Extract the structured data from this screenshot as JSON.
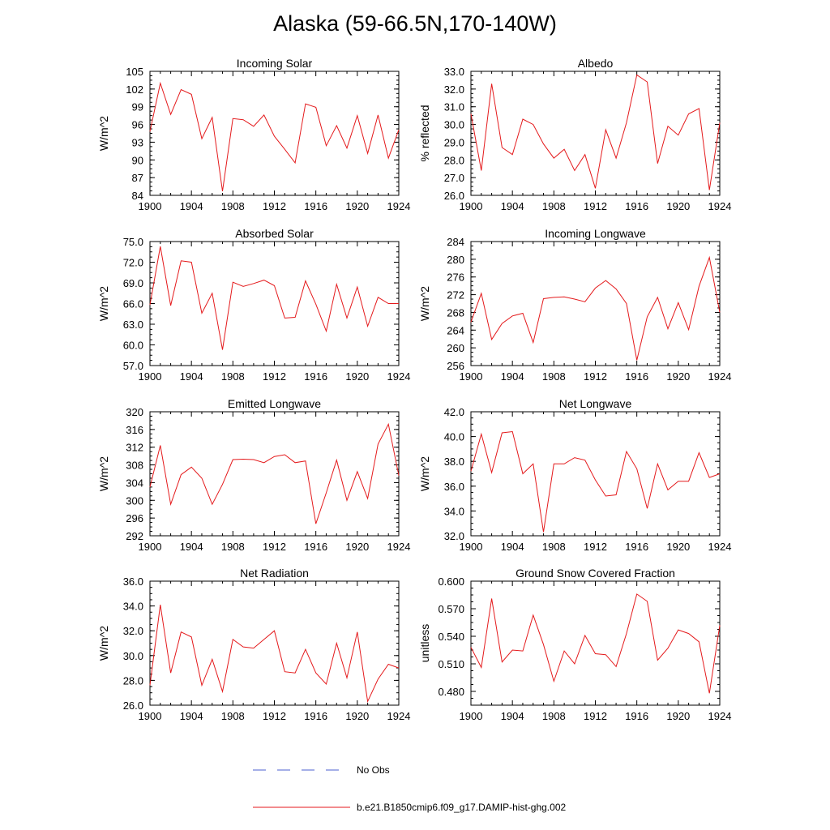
{
  "figure": {
    "title": "Alaska (59-66.5N,170-140W)"
  },
  "legend": {
    "obs_label": "No Obs",
    "model_label": "b.e21.B1850cmip6.f09_g17.DAMIP-hist-ghg.002",
    "obs_color": "#4b5fd0",
    "model_color": "#e41a1c"
  },
  "chart_data": [
    {
      "type": "line",
      "title": "Incoming Solar",
      "ylabel": "W/m^2",
      "xlim": [
        1900,
        1924
      ],
      "ylim": [
        84,
        105
      ],
      "xticks": [
        1900,
        1904,
        1908,
        1912,
        1916,
        1920,
        1924
      ],
      "yticks": [
        "84",
        "87",
        "90",
        "93",
        "96",
        "99",
        "102",
        "105"
      ],
      "x": [
        1900,
        1901,
        1902,
        1903,
        1904,
        1905,
        1906,
        1907,
        1908,
        1909,
        1910,
        1911,
        1912,
        1913,
        1914,
        1915,
        1916,
        1917,
        1918,
        1919,
        1920,
        1921,
        1922,
        1923,
        1924
      ],
      "y": [
        94.8,
        103.0,
        97.7,
        101.9,
        101.1,
        93.6,
        97.2,
        84.7,
        97.0,
        96.8,
        95.7,
        97.6,
        94.0,
        91.8,
        89.5,
        99.5,
        98.9,
        92.4,
        95.8,
        92.0,
        97.5,
        91.1,
        97.6,
        90.3,
        95.1
      ]
    },
    {
      "type": "line",
      "title": "Albedo",
      "ylabel": "% reflected",
      "xlim": [
        1900,
        1924
      ],
      "ylim": [
        26,
        33
      ],
      "xticks": [
        1900,
        1904,
        1908,
        1912,
        1916,
        1920,
        1924
      ],
      "yticks": [
        "26.0",
        "27.0",
        "28.0",
        "29.0",
        "30.0",
        "31.0",
        "32.0",
        "33.0"
      ],
      "x": [
        1900,
        1901,
        1902,
        1903,
        1904,
        1905,
        1906,
        1907,
        1908,
        1909,
        1910,
        1911,
        1912,
        1913,
        1914,
        1915,
        1916,
        1917,
        1918,
        1919,
        1920,
        1921,
        1922,
        1923,
        1924
      ],
      "y": [
        30.6,
        27.4,
        32.3,
        28.7,
        28.3,
        30.3,
        30.0,
        28.9,
        28.1,
        28.6,
        27.4,
        28.3,
        26.4,
        29.7,
        28.1,
        30.1,
        32.8,
        32.4,
        27.8,
        29.9,
        29.4,
        30.6,
        30.9,
        26.3,
        30.1
      ]
    },
    {
      "type": "line",
      "title": "Absorbed Solar",
      "ylabel": "W/m^2",
      "xlim": [
        1900,
        1924
      ],
      "ylim": [
        57,
        75
      ],
      "xticks": [
        1900,
        1904,
        1908,
        1912,
        1916,
        1920,
        1924
      ],
      "yticks": [
        "57.0",
        "60.0",
        "63.0",
        "66.0",
        "69.0",
        "72.0",
        "75.0"
      ],
      "x": [
        1900,
        1901,
        1902,
        1903,
        1904,
        1905,
        1906,
        1907,
        1908,
        1909,
        1910,
        1911,
        1912,
        1913,
        1914,
        1915,
        1916,
        1917,
        1918,
        1919,
        1920,
        1921,
        1922,
        1923,
        1924
      ],
      "y": [
        65.8,
        74.3,
        65.7,
        72.2,
        72.0,
        64.6,
        67.5,
        59.3,
        69.1,
        68.5,
        68.9,
        69.4,
        68.6,
        63.9,
        64.0,
        69.3,
        65.9,
        62.0,
        68.8,
        63.9,
        68.4,
        62.7,
        66.9,
        66.0,
        66.0
      ]
    },
    {
      "type": "line",
      "title": "Incoming Longwave",
      "ylabel": "W/m^2",
      "xlim": [
        1900,
        1924
      ],
      "ylim": [
        256,
        284
      ],
      "xticks": [
        1900,
        1904,
        1908,
        1912,
        1916,
        1920,
        1924
      ],
      "yticks": [
        "256",
        "260",
        "264",
        "268",
        "272",
        "276",
        "280",
        "284"
      ],
      "x": [
        1900,
        1901,
        1902,
        1903,
        1904,
        1905,
        1906,
        1907,
        1908,
        1909,
        1910,
        1911,
        1912,
        1913,
        1914,
        1915,
        1916,
        1917,
        1918,
        1919,
        1920,
        1921,
        1922,
        1923,
        1924
      ],
      "y": [
        265.8,
        272.3,
        261.9,
        265.5,
        267.2,
        267.8,
        261.2,
        271.1,
        271.4,
        271.5,
        271.0,
        270.4,
        273.5,
        275.2,
        273.3,
        270.0,
        257.2,
        267.0,
        271.4,
        264.3,
        270.2,
        264.1,
        273.9,
        280.4,
        268.0
      ]
    },
    {
      "type": "line",
      "title": "Emitted Longwave",
      "ylabel": "W/m^2",
      "xlim": [
        1900,
        1924
      ],
      "ylim": [
        292,
        320
      ],
      "xticks": [
        1900,
        1904,
        1908,
        1912,
        1916,
        1920,
        1924
      ],
      "yticks": [
        "292",
        "296",
        "300",
        "304",
        "308",
        "312",
        "316",
        "320"
      ],
      "x": [
        1900,
        1901,
        1902,
        1903,
        1904,
        1905,
        1906,
        1907,
        1908,
        1909,
        1910,
        1911,
        1912,
        1913,
        1914,
        1915,
        1916,
        1917,
        1918,
        1919,
        1920,
        1921,
        1922,
        1923,
        1924
      ],
      "y": [
        303.0,
        312.4,
        299.1,
        305.8,
        307.5,
        305.0,
        299.1,
        303.6,
        309.2,
        309.3,
        309.2,
        308.5,
        309.9,
        310.3,
        308.5,
        308.9,
        294.7,
        301.7,
        309.1,
        300.0,
        306.5,
        300.4,
        312.7,
        317.2,
        305.6
      ]
    },
    {
      "type": "line",
      "title": "Net Longwave",
      "ylabel": "W/m^2",
      "xlim": [
        1900,
        1924
      ],
      "ylim": [
        32,
        42
      ],
      "xticks": [
        1900,
        1904,
        1908,
        1912,
        1916,
        1920,
        1924
      ],
      "yticks": [
        "32.0",
        "34.0",
        "36.0",
        "38.0",
        "40.0",
        "42.0"
      ],
      "x": [
        1900,
        1901,
        1902,
        1903,
        1904,
        1905,
        1906,
        1907,
        1908,
        1909,
        1910,
        1911,
        1912,
        1913,
        1914,
        1915,
        1916,
        1917,
        1918,
        1919,
        1920,
        1921,
        1922,
        1923,
        1924
      ],
      "y": [
        37.2,
        40.2,
        37.1,
        40.3,
        40.4,
        37.0,
        37.8,
        32.3,
        37.8,
        37.8,
        38.3,
        38.1,
        36.5,
        35.2,
        35.3,
        38.8,
        37.4,
        34.2,
        37.8,
        35.7,
        36.4,
        36.4,
        38.7,
        36.7,
        37.0
      ]
    },
    {
      "type": "line",
      "title": "Net Radiation",
      "ylabel": "W/m^2",
      "xlim": [
        1900,
        1924
      ],
      "ylim": [
        26,
        36
      ],
      "xticks": [
        1900,
        1904,
        1908,
        1912,
        1916,
        1920,
        1924
      ],
      "yticks": [
        "26.0",
        "28.0",
        "30.0",
        "32.0",
        "34.0",
        "36.0"
      ],
      "x": [
        1900,
        1901,
        1902,
        1903,
        1904,
        1905,
        1906,
        1907,
        1908,
        1909,
        1910,
        1911,
        1912,
        1913,
        1914,
        1915,
        1916,
        1917,
        1918,
        1919,
        1920,
        1921,
        1922,
        1923,
        1924
      ],
      "y": [
        27.6,
        34.1,
        28.6,
        31.9,
        31.5,
        27.6,
        29.7,
        27.1,
        31.3,
        30.7,
        30.6,
        31.3,
        32.0,
        28.7,
        28.6,
        30.5,
        28.6,
        27.7,
        31.0,
        28.2,
        31.9,
        26.3,
        28.1,
        29.3,
        29.0
      ]
    },
    {
      "type": "line",
      "title": "Ground Snow Covered Fraction",
      "ylabel": "unitless",
      "xlim": [
        1900,
        1924
      ],
      "ylim": [
        0.465,
        0.6
      ],
      "xticks": [
        1900,
        1904,
        1908,
        1912,
        1916,
        1920,
        1924
      ],
      "yticks": [
        "0.480",
        "0.510",
        "0.540",
        "0.570",
        "0.600"
      ],
      "x": [
        1900,
        1901,
        1902,
        1903,
        1904,
        1905,
        1906,
        1907,
        1908,
        1909,
        1910,
        1911,
        1912,
        1913,
        1914,
        1915,
        1916,
        1917,
        1918,
        1919,
        1920,
        1921,
        1922,
        1923,
        1924
      ],
      "y": [
        0.528,
        0.506,
        0.581,
        0.512,
        0.525,
        0.524,
        0.563,
        0.531,
        0.491,
        0.524,
        0.51,
        0.541,
        0.521,
        0.52,
        0.507,
        0.543,
        0.586,
        0.578,
        0.514,
        0.527,
        0.547,
        0.543,
        0.534,
        0.478,
        0.552
      ]
    }
  ]
}
